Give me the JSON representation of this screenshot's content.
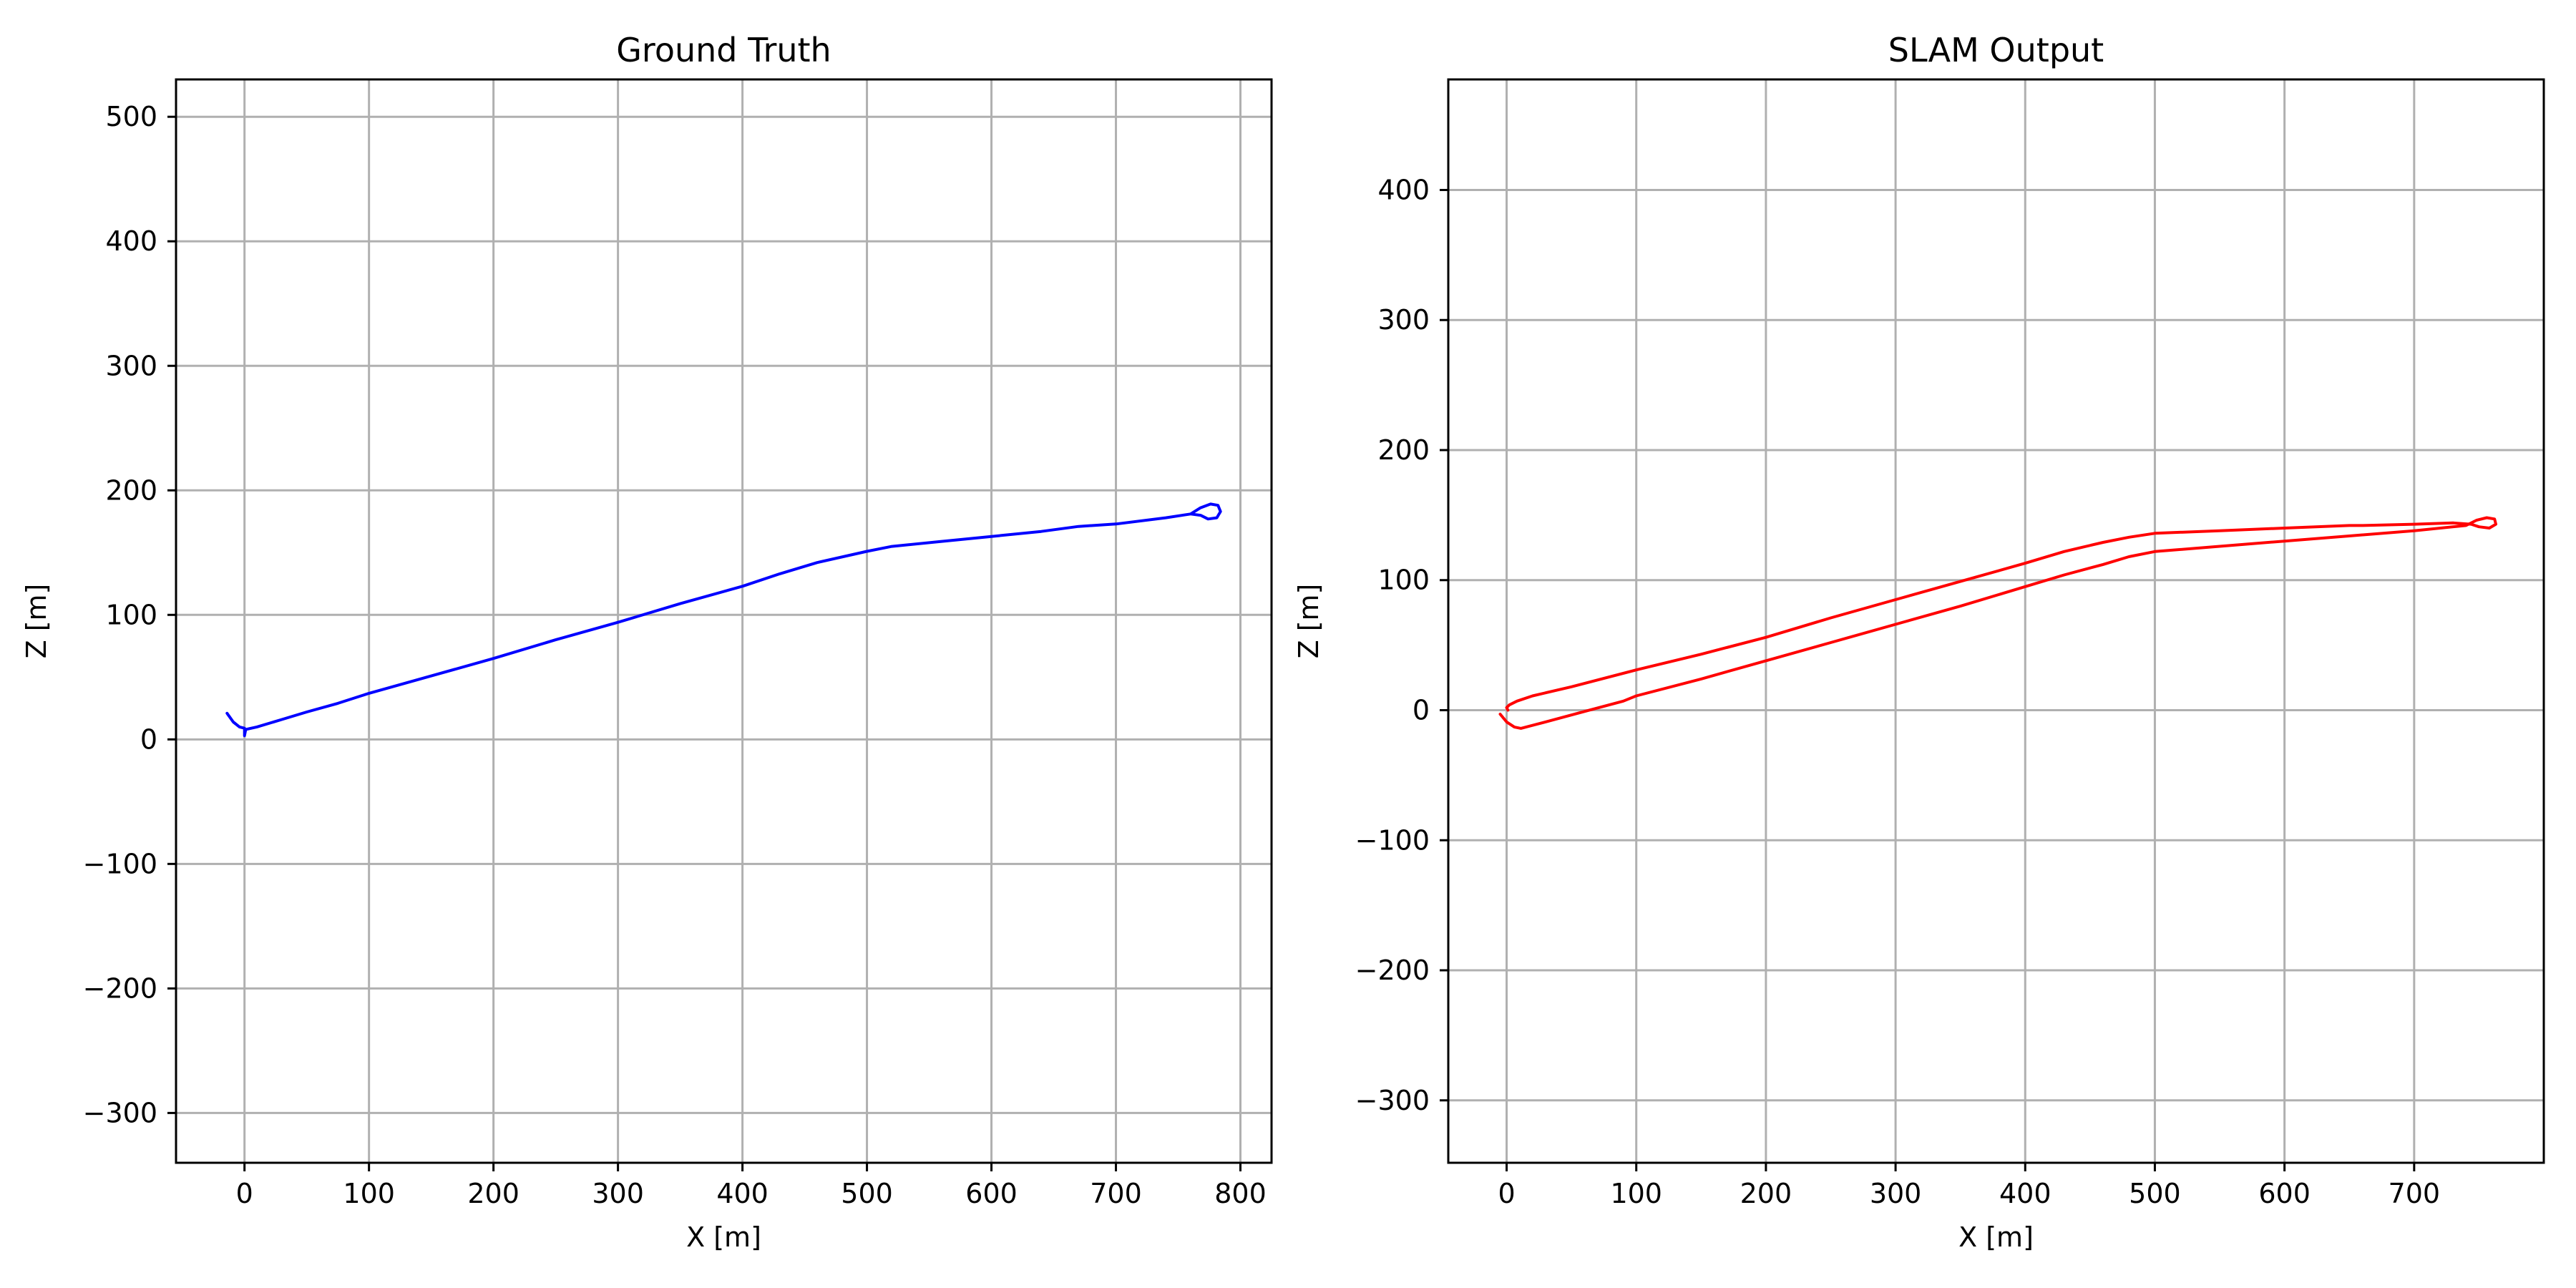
{
  "chart_data": [
    {
      "type": "line",
      "title": "Ground Truth",
      "xlabel": "X [m]",
      "ylabel": "Z [m]",
      "xlim": [
        -55,
        825
      ],
      "ylim": [
        -340,
        530
      ],
      "xticks": [
        0,
        100,
        200,
        300,
        400,
        500,
        600,
        700,
        800
      ],
      "yticks": [
        -300,
        -200,
        -100,
        0,
        100,
        200,
        300,
        400,
        500
      ],
      "grid": true,
      "series": [
        {
          "color": "#0000ff",
          "x": [
            -14,
            -9,
            -4,
            0,
            0,
            1,
            10,
            30,
            50,
            75,
            100,
            150,
            200,
            250,
            300,
            350,
            400,
            430,
            460,
            500,
            520,
            560,
            600,
            640,
            670,
            700,
            740,
            760,
            768,
            776,
            782,
            784,
            781,
            774,
            768,
            760
          ],
          "y": [
            21,
            14,
            10,
            9,
            3,
            8,
            10,
            16,
            22,
            29,
            37,
            51,
            65,
            80,
            94,
            109,
            123,
            133,
            142,
            151,
            155,
            159,
            163,
            167,
            171,
            173,
            178,
            181,
            186,
            189,
            188,
            183,
            178,
            177,
            180,
            181
          ]
        }
      ]
    },
    {
      "type": "line",
      "title": "SLAM Output",
      "xlabel": "X [m]",
      "ylabel": "Z [m]",
      "xlim": [
        -45,
        800
      ],
      "ylim": [
        -348,
        485
      ],
      "xticks": [
        0,
        100,
        200,
        300,
        400,
        500,
        600,
        700
      ],
      "yticks": [
        -300,
        -200,
        -100,
        0,
        100,
        200,
        300,
        400
      ],
      "grid": true,
      "series": [
        {
          "color": "#ff0000",
          "x": [
            -5,
            0,
            6,
            11,
            30,
            60,
            90,
            100,
            150,
            200,
            250,
            300,
            350,
            400,
            430,
            460,
            480,
            500,
            550,
            600,
            650,
            700,
            740,
            748,
            756,
            762,
            763,
            758,
            750,
            744,
            730,
            700,
            660,
            650,
            600,
            550,
            500,
            480,
            460,
            430,
            400,
            350,
            300,
            250,
            200,
            150,
            100,
            50,
            20,
            8,
            2,
            0,
            1
          ],
          "y": [
            -3,
            -9,
            -13,
            -14,
            -9,
            -1,
            7,
            11,
            24,
            38,
            52,
            66,
            80,
            95,
            104,
            112,
            118,
            122,
            126,
            130,
            134,
            138,
            142,
            146,
            148,
            147,
            143,
            140,
            141,
            143,
            144,
            143,
            142,
            142,
            140,
            138,
            136,
            133,
            129,
            122,
            113,
            99,
            85,
            71,
            56,
            43,
            31,
            18,
            11,
            7,
            4,
            2,
            0
          ]
        }
      ]
    }
  ]
}
